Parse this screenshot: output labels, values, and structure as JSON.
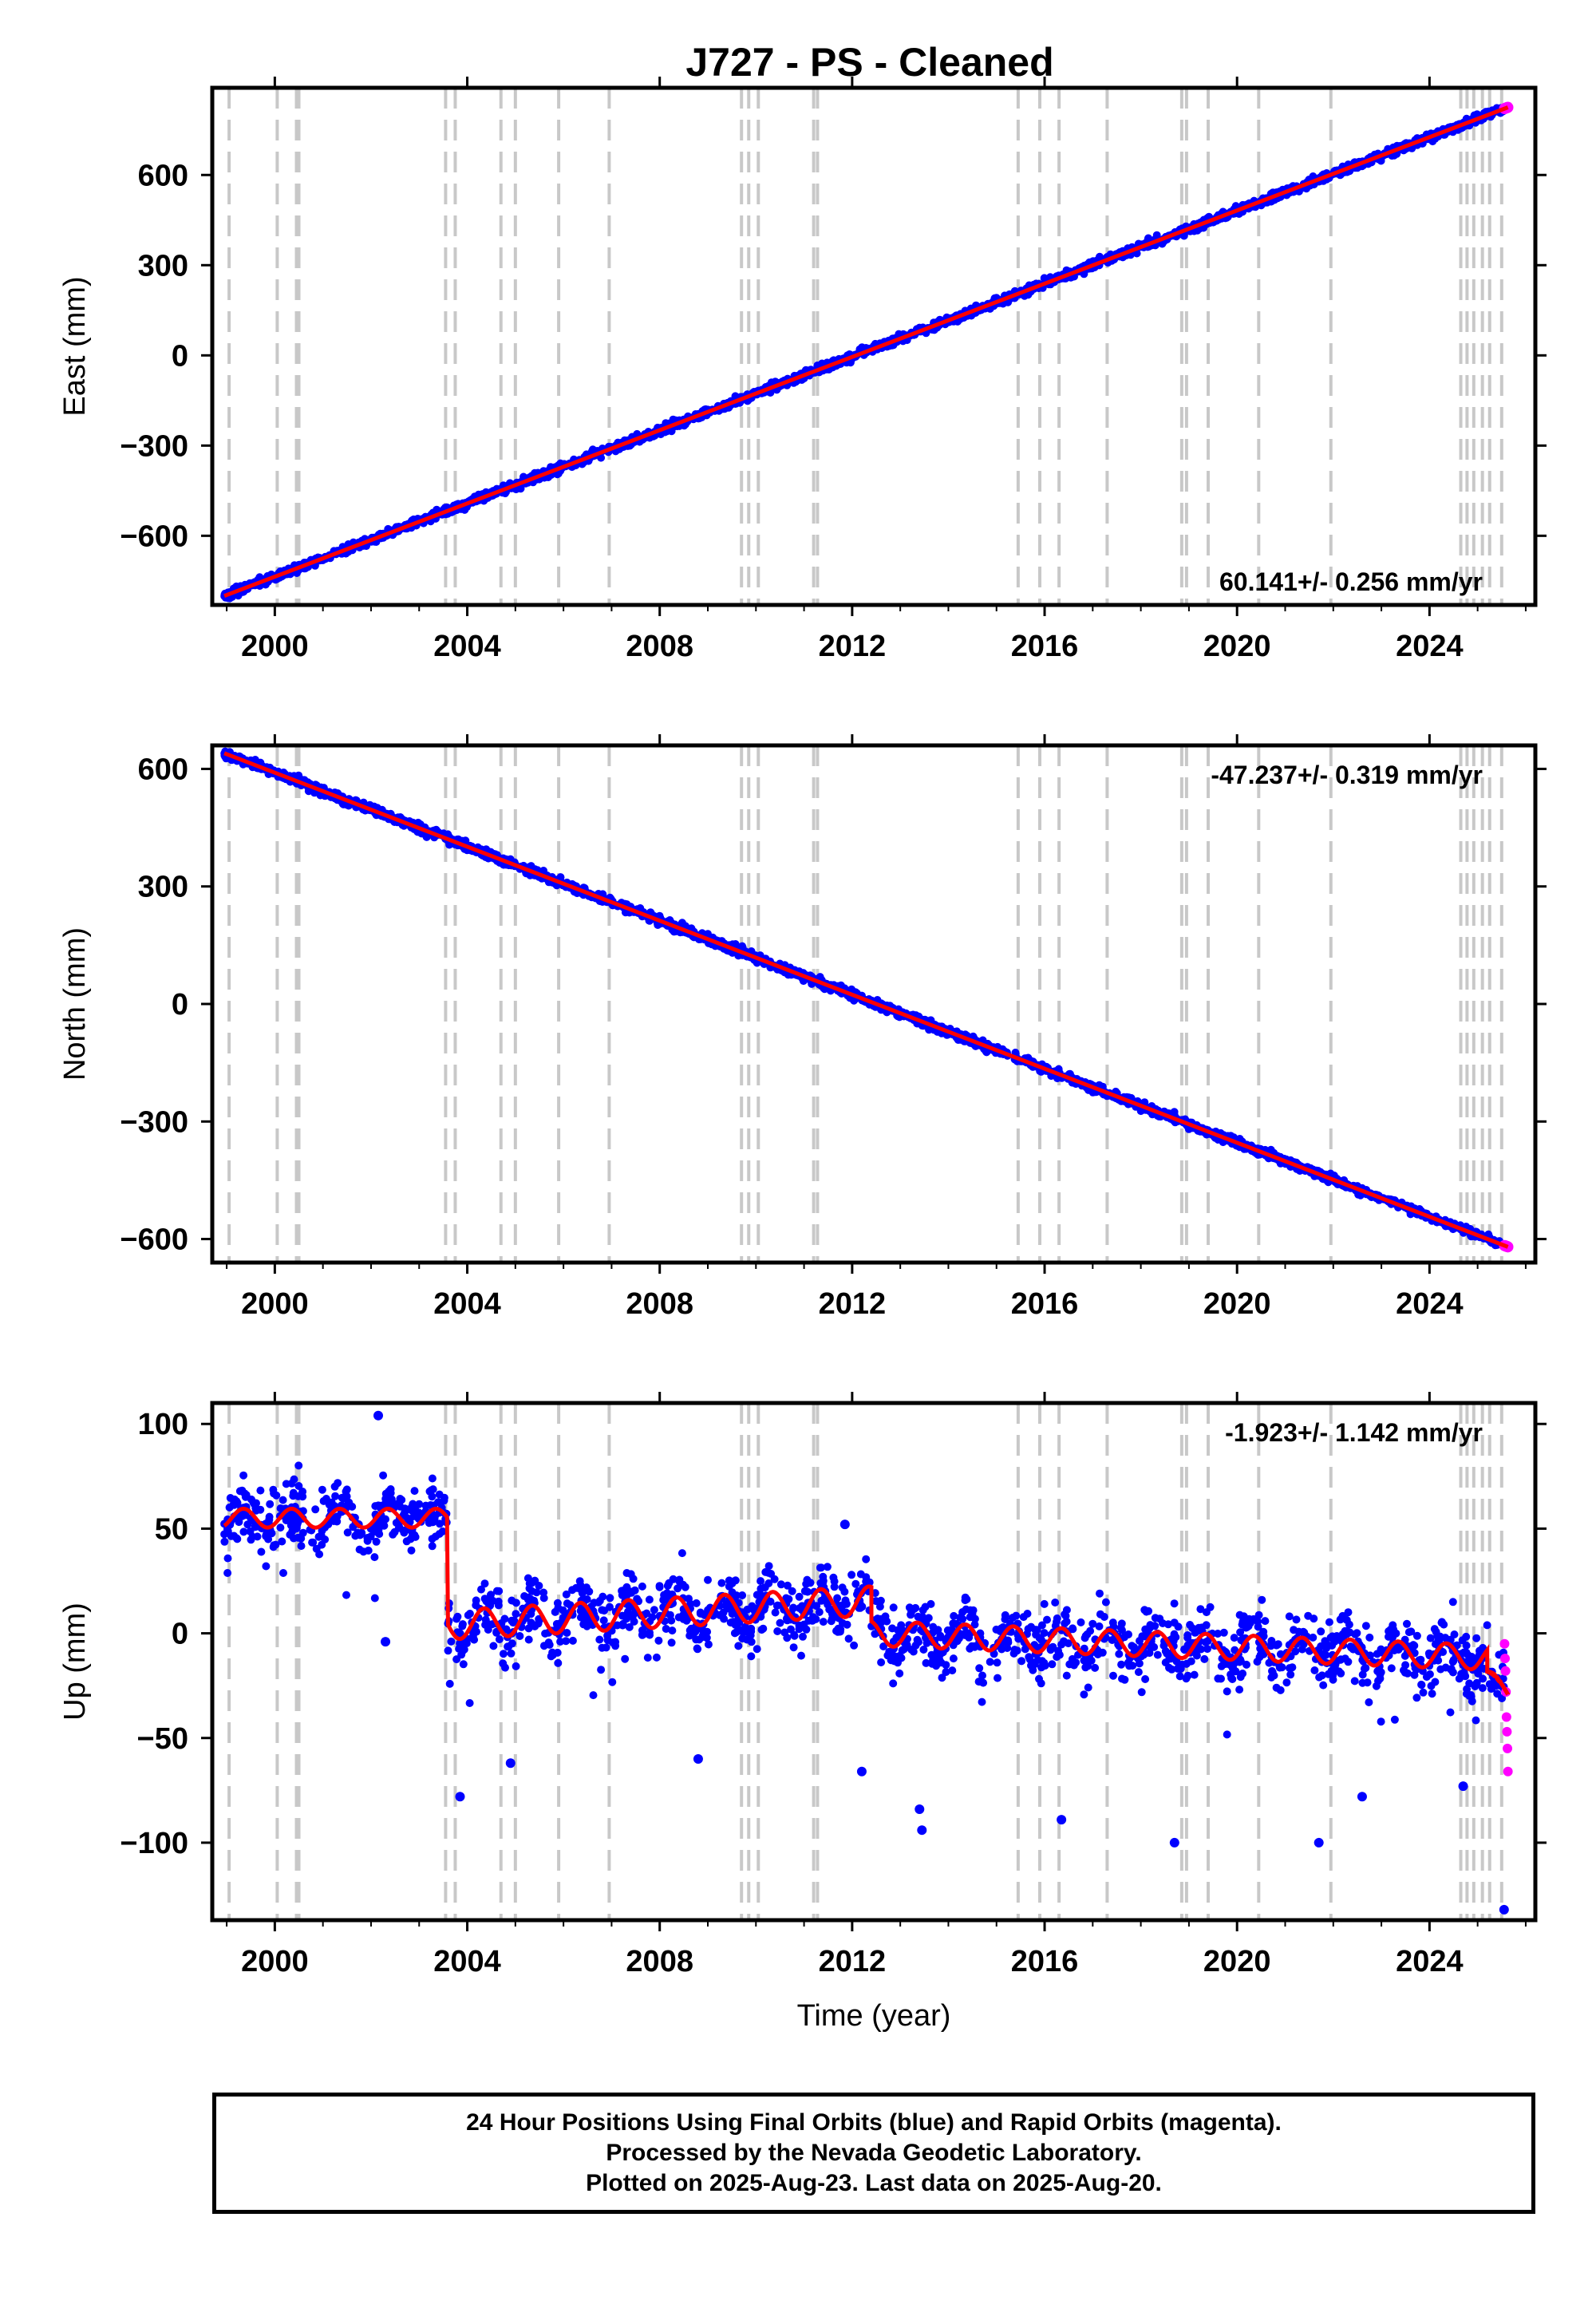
{
  "title": "J727  - PS - Cleaned",
  "caption": {
    "line1": "24 Hour Positions Using Final Orbits (blue) and Rapid Orbits (magenta).",
    "line2": "Processed by the Nevada Geodetic Laboratory.",
    "line3": "Plotted on 2025-Aug-23. Last data on 2025-Aug-20."
  },
  "colors": {
    "final_orbits": "#0000ff",
    "rapid_orbits": "#ff00ff",
    "model": "#ff0000",
    "event_lines": "#c8c8c8"
  },
  "chart_data": [
    {
      "type": "scatter",
      "ylabel": "East (mm)",
      "xlabel": "",
      "xlim": [
        1998.7,
        2026.2
      ],
      "ylim": [
        -830,
        890
      ],
      "xticks": [
        2000,
        2004,
        2008,
        2012,
        2016,
        2020,
        2024
      ],
      "yticks": [
        -600,
        -300,
        0,
        300,
        600
      ],
      "rate_label": "60.141+/- 0.256 mm/yr",
      "rate_position": "bottom-right",
      "trend": {
        "x": [
          1998.95,
          2025.63
        ],
        "y": [
          -800,
          825
        ]
      },
      "noise_mm": 10,
      "series": [
        {
          "role": "final",
          "x_range": [
            1998.95,
            2025.55
          ]
        },
        {
          "role": "rapid",
          "x_range": [
            2025.56,
            2025.63
          ]
        }
      ],
      "event_lines": [
        1999.05,
        2000.05,
        2000.45,
        2000.5,
        2003.55,
        2003.75,
        2004.7,
        2005.0,
        2005.9,
        2006.95,
        2009.7,
        2009.85,
        2010.05,
        2011.2,
        2011.28,
        2015.45,
        2015.9,
        2016.3,
        2017.3,
        2018.85,
        2018.95,
        2019.4,
        2020.45,
        2021.95,
        2024.65,
        2024.78,
        2024.92,
        2025.1,
        2025.25,
        2025.5
      ]
    },
    {
      "type": "scatter",
      "ylabel": "North (mm)",
      "xlabel": "",
      "xlim": [
        1998.7,
        2026.2
      ],
      "ylim": [
        -660,
        660
      ],
      "xticks": [
        2000,
        2004,
        2008,
        2012,
        2016,
        2020,
        2024
      ],
      "yticks": [
        -600,
        -300,
        0,
        300,
        600
      ],
      "rate_label": "-47.237+/- 0.319 mm/yr",
      "rate_position": "top-right",
      "trend": {
        "x": [
          1998.95,
          2025.63
        ],
        "y": [
          640,
          -620
        ]
      },
      "noise_mm": 8,
      "series": [
        {
          "role": "final",
          "x_range": [
            1998.95,
            2025.55
          ]
        },
        {
          "role": "rapid",
          "x_range": [
            2025.56,
            2025.63
          ]
        }
      ],
      "event_lines": [
        1999.05,
        2000.05,
        2000.45,
        2000.5,
        2003.55,
        2003.75,
        2004.7,
        2005.0,
        2005.9,
        2006.95,
        2009.7,
        2009.85,
        2010.05,
        2011.2,
        2011.28,
        2015.45,
        2015.9,
        2016.3,
        2017.3,
        2018.85,
        2018.95,
        2019.4,
        2020.45,
        2021.95,
        2024.65,
        2024.78,
        2024.92,
        2025.1,
        2025.25,
        2025.5
      ]
    },
    {
      "type": "scatter",
      "ylabel": "Up (mm)",
      "xlabel": "Time (year)",
      "xlim": [
        1998.7,
        2026.2
      ],
      "ylim": [
        -137,
        110
      ],
      "xticks": [
        2000,
        2004,
        2008,
        2012,
        2016,
        2020,
        2024
      ],
      "yticks": [
        -100,
        -50,
        0,
        50,
        100
      ],
      "rate_label": "-1.923+/- 1.142 mm/yr",
      "rate_position": "top-right",
      "model_segments": [
        {
          "x": [
            1998.95,
            2003.58
          ],
          "offset": 55,
          "slope": 0,
          "amp": 4.5
        },
        {
          "x": [
            2003.6,
            2012.4
          ],
          "offset": 4,
          "slope": 1.3,
          "amp": 7
        },
        {
          "x": [
            2012.4,
            2025.2
          ],
          "offset": 0,
          "slope": -0.9,
          "amp": 6
        },
        {
          "x": [
            2025.2,
            2025.63
          ],
          "offset": -20,
          "slope": -20,
          "amp": 3
        }
      ],
      "noise_mm": 11,
      "outliers": [
        {
          "x": 2002.3,
          "y": -4
        },
        {
          "x": 2003.85,
          "y": -78
        },
        {
          "x": 2004.9,
          "y": -62
        },
        {
          "x": 2008.8,
          "y": -60
        },
        {
          "x": 2012.2,
          "y": -66
        },
        {
          "x": 2013.4,
          "y": -84
        },
        {
          "x": 2013.45,
          "y": -94
        },
        {
          "x": 2016.35,
          "y": -89
        },
        {
          "x": 2018.7,
          "y": -100
        },
        {
          "x": 2021.7,
          "y": -100
        },
        {
          "x": 2022.6,
          "y": -78
        },
        {
          "x": 2024.7,
          "y": -73
        },
        {
          "x": 2025.55,
          "y": -132
        },
        {
          "x": 2002.15,
          "y": 104
        },
        {
          "x": 2011.85,
          "y": 52
        }
      ],
      "rapid_points": [
        {
          "x": 2025.56,
          "y": -5
        },
        {
          "x": 2025.57,
          "y": -12
        },
        {
          "x": 2025.58,
          "y": -18
        },
        {
          "x": 2025.59,
          "y": -28
        },
        {
          "x": 2025.6,
          "y": -40
        },
        {
          "x": 2025.61,
          "y": -47
        },
        {
          "x": 2025.62,
          "y": -55
        },
        {
          "x": 2025.63,
          "y": -66
        }
      ],
      "event_lines": [
        1999.05,
        2000.05,
        2000.45,
        2000.5,
        2003.55,
        2003.75,
        2004.7,
        2005.0,
        2005.9,
        2006.95,
        2009.7,
        2009.85,
        2010.05,
        2011.2,
        2011.28,
        2015.45,
        2015.9,
        2016.3,
        2017.3,
        2018.85,
        2018.95,
        2019.4,
        2020.45,
        2021.95,
        2024.65,
        2024.78,
        2024.92,
        2025.1,
        2025.25,
        2025.5
      ]
    }
  ]
}
